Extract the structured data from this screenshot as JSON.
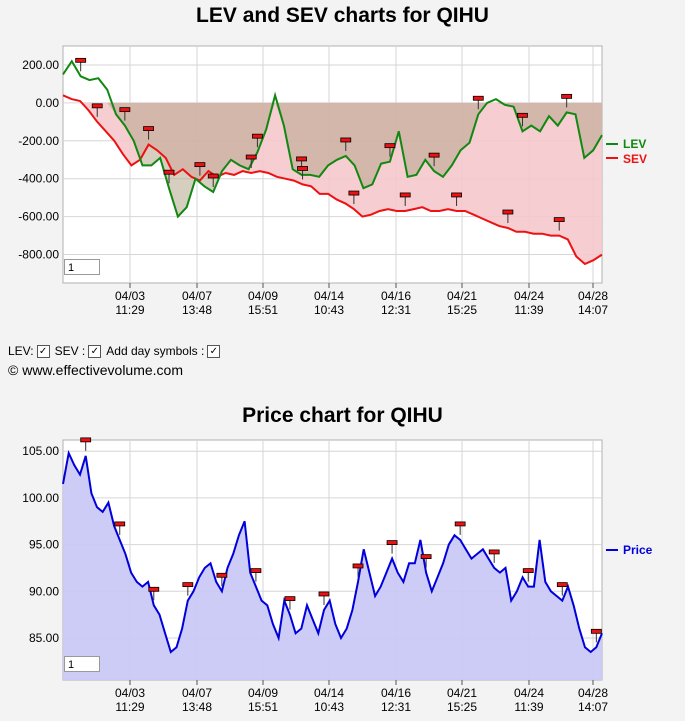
{
  "chart_data": [
    {
      "type": "line",
      "title": "LEV and SEV charts for QIHU",
      "y_ticks": [
        "200.00",
        "0.00",
        "-200.00",
        "-400.00",
        "-600.00",
        "-800.00"
      ],
      "ylim": [
        -950,
        300
      ],
      "x_ticks": [
        {
          "date": "04/03",
          "time": "11:29"
        },
        {
          "date": "04/07",
          "time": "13:48"
        },
        {
          "date": "04/09",
          "time": "15:51"
        },
        {
          "date": "04/14",
          "time": "10:43"
        },
        {
          "date": "04/16",
          "time": "12:31"
        },
        {
          "date": "04/21",
          "time": "15:25"
        },
        {
          "date": "04/24",
          "time": "11:39"
        },
        {
          "date": "04/28",
          "time": "14:07"
        }
      ],
      "legend_placement": "right",
      "grid": true,
      "series": [
        {
          "name": "LEV",
          "color": "#118811",
          "values": [
            150,
            220,
            140,
            120,
            130,
            70,
            -60,
            -120,
            -200,
            -330,
            -330,
            -290,
            -450,
            -600,
            -550,
            -400,
            -440,
            -470,
            -360,
            -300,
            -330,
            -350,
            -260,
            -140,
            40,
            -120,
            -350,
            -380,
            -380,
            -390,
            -330,
            -300,
            -280,
            -330,
            -450,
            -430,
            -320,
            -310,
            -150,
            -390,
            -380,
            -300,
            -360,
            -390,
            -330,
            -250,
            -210,
            -60,
            0,
            20,
            -10,
            -20,
            -150,
            -120,
            -150,
            -70,
            -120,
            -50,
            -60,
            -290,
            -250,
            -170
          ]
        },
        {
          "name": "SEV",
          "color": "#ee1111",
          "values": [
            40,
            20,
            10,
            -40,
            -100,
            -150,
            -200,
            -270,
            -330,
            -300,
            -220,
            -250,
            -290,
            -380,
            -350,
            -390,
            -410,
            -360,
            -390,
            -370,
            -380,
            -360,
            -370,
            -360,
            -370,
            -390,
            -400,
            -410,
            -430,
            -440,
            -480,
            -480,
            -510,
            -530,
            -560,
            -600,
            -590,
            -570,
            -560,
            -570,
            -570,
            -560,
            -550,
            -570,
            -570,
            -560,
            -570,
            -570,
            -590,
            -610,
            -630,
            -650,
            -660,
            -680,
            -680,
            -690,
            -690,
            -700,
            -700,
            -720,
            -810,
            -850,
            -830,
            -800
          ]
        }
      ]
    },
    {
      "type": "area",
      "title": "Price chart for QIHU",
      "y_ticks": [
        "105.00",
        "100.00",
        "95.00",
        "90.00",
        "85.00"
      ],
      "ylim": [
        80.5,
        106.2
      ],
      "x_ticks": [
        {
          "date": "04/03",
          "time": "11:29"
        },
        {
          "date": "04/07",
          "time": "13:48"
        },
        {
          "date": "04/09",
          "time": "15:51"
        },
        {
          "date": "04/14",
          "time": "10:43"
        },
        {
          "date": "04/16",
          "time": "12:31"
        },
        {
          "date": "04/21",
          "time": "15:25"
        },
        {
          "date": "04/24",
          "time": "11:39"
        },
        {
          "date": "04/28",
          "time": "14:07"
        }
      ],
      "legend_placement": "right",
      "grid": true,
      "series": [
        {
          "name": "Price",
          "color": "#0000dd",
          "values": [
            101.5,
            104.8,
            103.5,
            102.5,
            104.5,
            100.5,
            99,
            98.5,
            99.5,
            97,
            95.5,
            94,
            92,
            91,
            90.5,
            91,
            88.5,
            87.5,
            85.5,
            83.5,
            84,
            86,
            89,
            90,
            91.5,
            92.5,
            93,
            91,
            90,
            92.5,
            94,
            96,
            97.5,
            92,
            90.5,
            89,
            88.5,
            86.5,
            85,
            89,
            87.5,
            85.5,
            86,
            88.5,
            87,
            85.5,
            88,
            89,
            86.5,
            85,
            86,
            88,
            91,
            94.5,
            92,
            89.5,
            90.5,
            92,
            93.5,
            92,
            91,
            93,
            93,
            95.5,
            92,
            90,
            91.5,
            93,
            95,
            96,
            95.5,
            94.5,
            93.5,
            94,
            94.5,
            93.5,
            92.5,
            92,
            92.5,
            89,
            90,
            91.5,
            90.5,
            90.5,
            95.5,
            91,
            90,
            89.5,
            89,
            90.5,
            88.5,
            86,
            84,
            83.5,
            84,
            85.5
          ]
        }
      ]
    }
  ],
  "top_chart": {
    "legend_lev": "LEV",
    "legend_sev": "SEV",
    "zoom_value": "1"
  },
  "options": {
    "lev_label": "LEV:",
    "sev_label": "SEV :",
    "day_symbols_label": "Add day symbols :",
    "check_mark": "✓"
  },
  "copyright": "© www.effectivevolume.com",
  "bottom_chart": {
    "legend_price": "Price",
    "zoom_value": "1"
  }
}
